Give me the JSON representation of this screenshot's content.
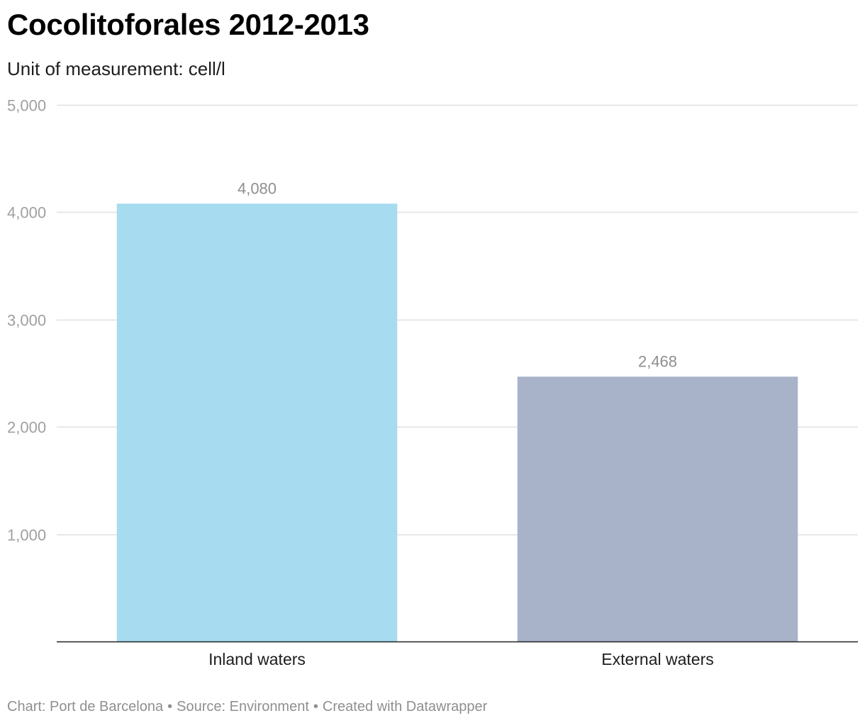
{
  "title": "Cocolitoforales 2012-2013",
  "subtitle": "Unit of measurement: cell/l",
  "chart_data": {
    "type": "bar",
    "categories": [
      "Inland waters",
      "External waters"
    ],
    "values": [
      4080,
      2468
    ],
    "value_labels": [
      "4,080",
      "2,468"
    ],
    "colors": [
      "#a7dcf0",
      "#a8b3ca"
    ],
    "ylim": [
      0,
      5000
    ],
    "yticks": [
      1000,
      2000,
      3000,
      4000,
      5000
    ],
    "ytick_labels": [
      "1,000",
      "2,000",
      "3,000",
      "4,000",
      "5,000"
    ],
    "grid": true,
    "legend": "none"
  },
  "footer": {
    "chart_credit": "Chart: Port de Barcelona",
    "source": "Source: Environment",
    "tool": "Created with Datawrapper"
  }
}
